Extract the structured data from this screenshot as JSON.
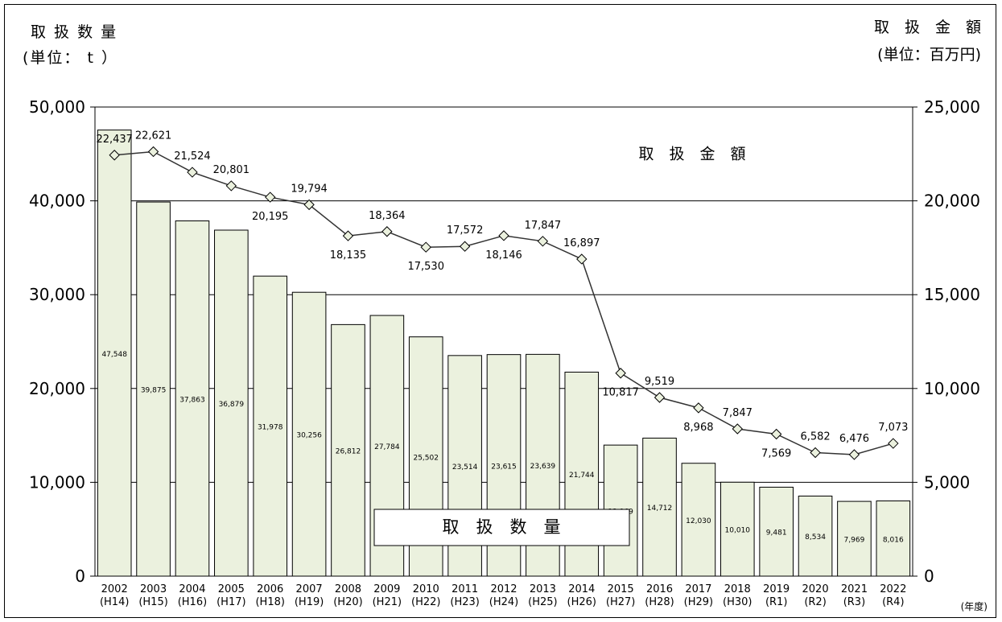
{
  "chart_data": {
    "type": "bar+line",
    "left_axis": {
      "title_line1": "取 扱 数 量",
      "title_line2": "(単位： t ）",
      "ticks": [
        "0",
        "10,000",
        "20,000",
        "30,000",
        "40,000",
        "50,000"
      ],
      "range": [
        0,
        50000
      ]
    },
    "right_axis": {
      "title_line1": "取　扱　金　額",
      "title_line2": "(単位：百万円)",
      "ticks": [
        "0",
        "5,000",
        "10,000",
        "15,000",
        "20,000",
        "25,000"
      ],
      "range": [
        0,
        25000
      ]
    },
    "x_unit": "(年度)",
    "categories": [
      "2002",
      "2003",
      "2004",
      "2005",
      "2006",
      "2007",
      "2008",
      "2009",
      "2010",
      "2011",
      "2012",
      "2013",
      "2014",
      "2015",
      "2016",
      "2017",
      "2018",
      "2019",
      "2020",
      "2021",
      "2022"
    ],
    "era_labels": [
      "(H14)",
      "(H15)",
      "(H16)",
      "(H17)",
      "(H18)",
      "(H19)",
      "(H20)",
      "(H21)",
      "(H22)",
      "(H23)",
      "(H24)",
      "(H25)",
      "(H26)",
      "(H27)",
      "(H28)",
      "(H29)",
      "(H30)",
      "(R1)",
      "(R2)",
      "(R3)",
      "(R4)"
    ],
    "bar_series": {
      "name": "取　扱　数　量",
      "values": [
        47548,
        39875,
        37863,
        36879,
        31978,
        30256,
        26812,
        27784,
        25502,
        23514,
        23615,
        23639,
        21744,
        13969,
        14712,
        12030,
        10010,
        9481,
        8534,
        7969,
        8016
      ],
      "labels": [
        "47,548",
        "39,875",
        "37,863",
        "36,879",
        "31,978",
        "30,256",
        "26,812",
        "27,784",
        "25,502",
        "23,514",
        "23,615",
        "23,639",
        "21,744",
        "13,969",
        "14,712",
        "12,030",
        "10,010",
        "9,481",
        "8,534",
        "7,969",
        "8,016"
      ],
      "color": "#ebf1de"
    },
    "line_series": {
      "name": "取　扱　金　額",
      "values": [
        22437,
        22621,
        21524,
        20801,
        20195,
        19794,
        18135,
        18364,
        17530,
        17572,
        18146,
        17847,
        16897,
        10817,
        9519,
        8968,
        7847,
        7569,
        6582,
        6476,
        7073
      ],
      "labels": [
        "22,437",
        "22,621",
        "21,524",
        "20,801",
        "20,195",
        "19,794",
        "18,135",
        "18,364",
        "17,530",
        "17,572",
        "18,146",
        "17,847",
        "16,897",
        "10,817",
        "9,519",
        "8,968",
        "7,847",
        "7,569",
        "6,582",
        "6,476",
        "7,073"
      ],
      "label_side": [
        "top",
        "top",
        "top",
        "top",
        "bottom",
        "top",
        "bottom",
        "top",
        "bottom",
        "top",
        "bottom",
        "top",
        "top",
        "bottom",
        "top",
        "bottom",
        "top",
        "bottom",
        "top",
        "top",
        "top"
      ],
      "marker_color": "#ebf1de"
    },
    "grid": true
  }
}
